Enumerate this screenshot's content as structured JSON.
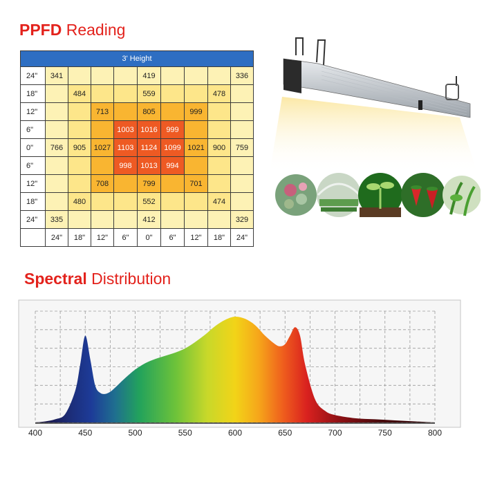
{
  "ppfd": {
    "title_bold": "PPFD",
    "title_rest": "Reading",
    "header": "3' Height",
    "row_labels": [
      "24\"",
      "18\"",
      "12\"",
      "6\"",
      "0\"",
      "6\"",
      "12\"",
      "18\"",
      "24\""
    ],
    "col_labels": [
      "24\"",
      "18\"",
      "12\"",
      "6\"",
      "0\"",
      "6\"",
      "12\"",
      "18\"",
      "24\""
    ],
    "cells": [
      [
        "341",
        "",
        "",
        "",
        "419",
        "",
        "",
        "",
        "336"
      ],
      [
        "",
        "484",
        "",
        "",
        "559",
        "",
        "",
        "478",
        ""
      ],
      [
        "",
        "",
        "713",
        "",
        "805",
        "",
        "999",
        "",
        ""
      ],
      [
        "",
        "",
        "",
        "1003",
        "1016",
        "999",
        "",
        "",
        ""
      ],
      [
        "766",
        "905",
        "1027",
        "1103",
        "1124",
        "1099",
        "1021",
        "900",
        "759"
      ],
      [
        "",
        "",
        "",
        "998",
        "1013",
        "994",
        "",
        "",
        ""
      ],
      [
        "",
        "",
        "708",
        "",
        "799",
        "",
        "701",
        "",
        ""
      ],
      [
        "",
        "480",
        "",
        "",
        "552",
        "",
        "",
        "474",
        ""
      ],
      [
        "335",
        "",
        "",
        "",
        "412",
        "",
        "",
        "",
        "329"
      ]
    ],
    "colors": {
      "zone_outer": "#fdf2b5",
      "zone_mid": "#fde68a",
      "zone_inner": "#f9b531",
      "zone_core": "#ee5a23",
      "header_bg": "#2e6ec2"
    }
  },
  "spectral": {
    "title_bold": "Spectral",
    "title_rest": "Distribution"
  },
  "chart_data": {
    "type": "area",
    "title": "Spectral Distribution",
    "xlabel": "",
    "ylabel": "",
    "xlim": [
      400,
      800
    ],
    "xticks": [
      "400",
      "450",
      "500",
      "550",
      "600",
      "650",
      "700",
      "750",
      "800"
    ],
    "grid": true,
    "series": [
      {
        "x": [
          400,
          410,
          420,
          430,
          440,
          445,
          450,
          455,
          460,
          465,
          470,
          475,
          480,
          490,
          500,
          510,
          520,
          530,
          540,
          550,
          560,
          570,
          580,
          590,
          600,
          610,
          620,
          630,
          640,
          645,
          650,
          655,
          660,
          665,
          670,
          680,
          690,
          700,
          720,
          740,
          760,
          780,
          800
        ],
        "y": [
          0.0,
          0.01,
          0.03,
          0.08,
          0.3,
          0.55,
          0.82,
          0.6,
          0.35,
          0.28,
          0.27,
          0.29,
          0.33,
          0.42,
          0.5,
          0.56,
          0.6,
          0.63,
          0.66,
          0.7,
          0.76,
          0.83,
          0.91,
          0.97,
          1.0,
          0.98,
          0.92,
          0.82,
          0.74,
          0.72,
          0.74,
          0.82,
          0.9,
          0.82,
          0.55,
          0.22,
          0.11,
          0.07,
          0.04,
          0.03,
          0.02,
          0.01,
          0.0
        ]
      }
    ]
  }
}
